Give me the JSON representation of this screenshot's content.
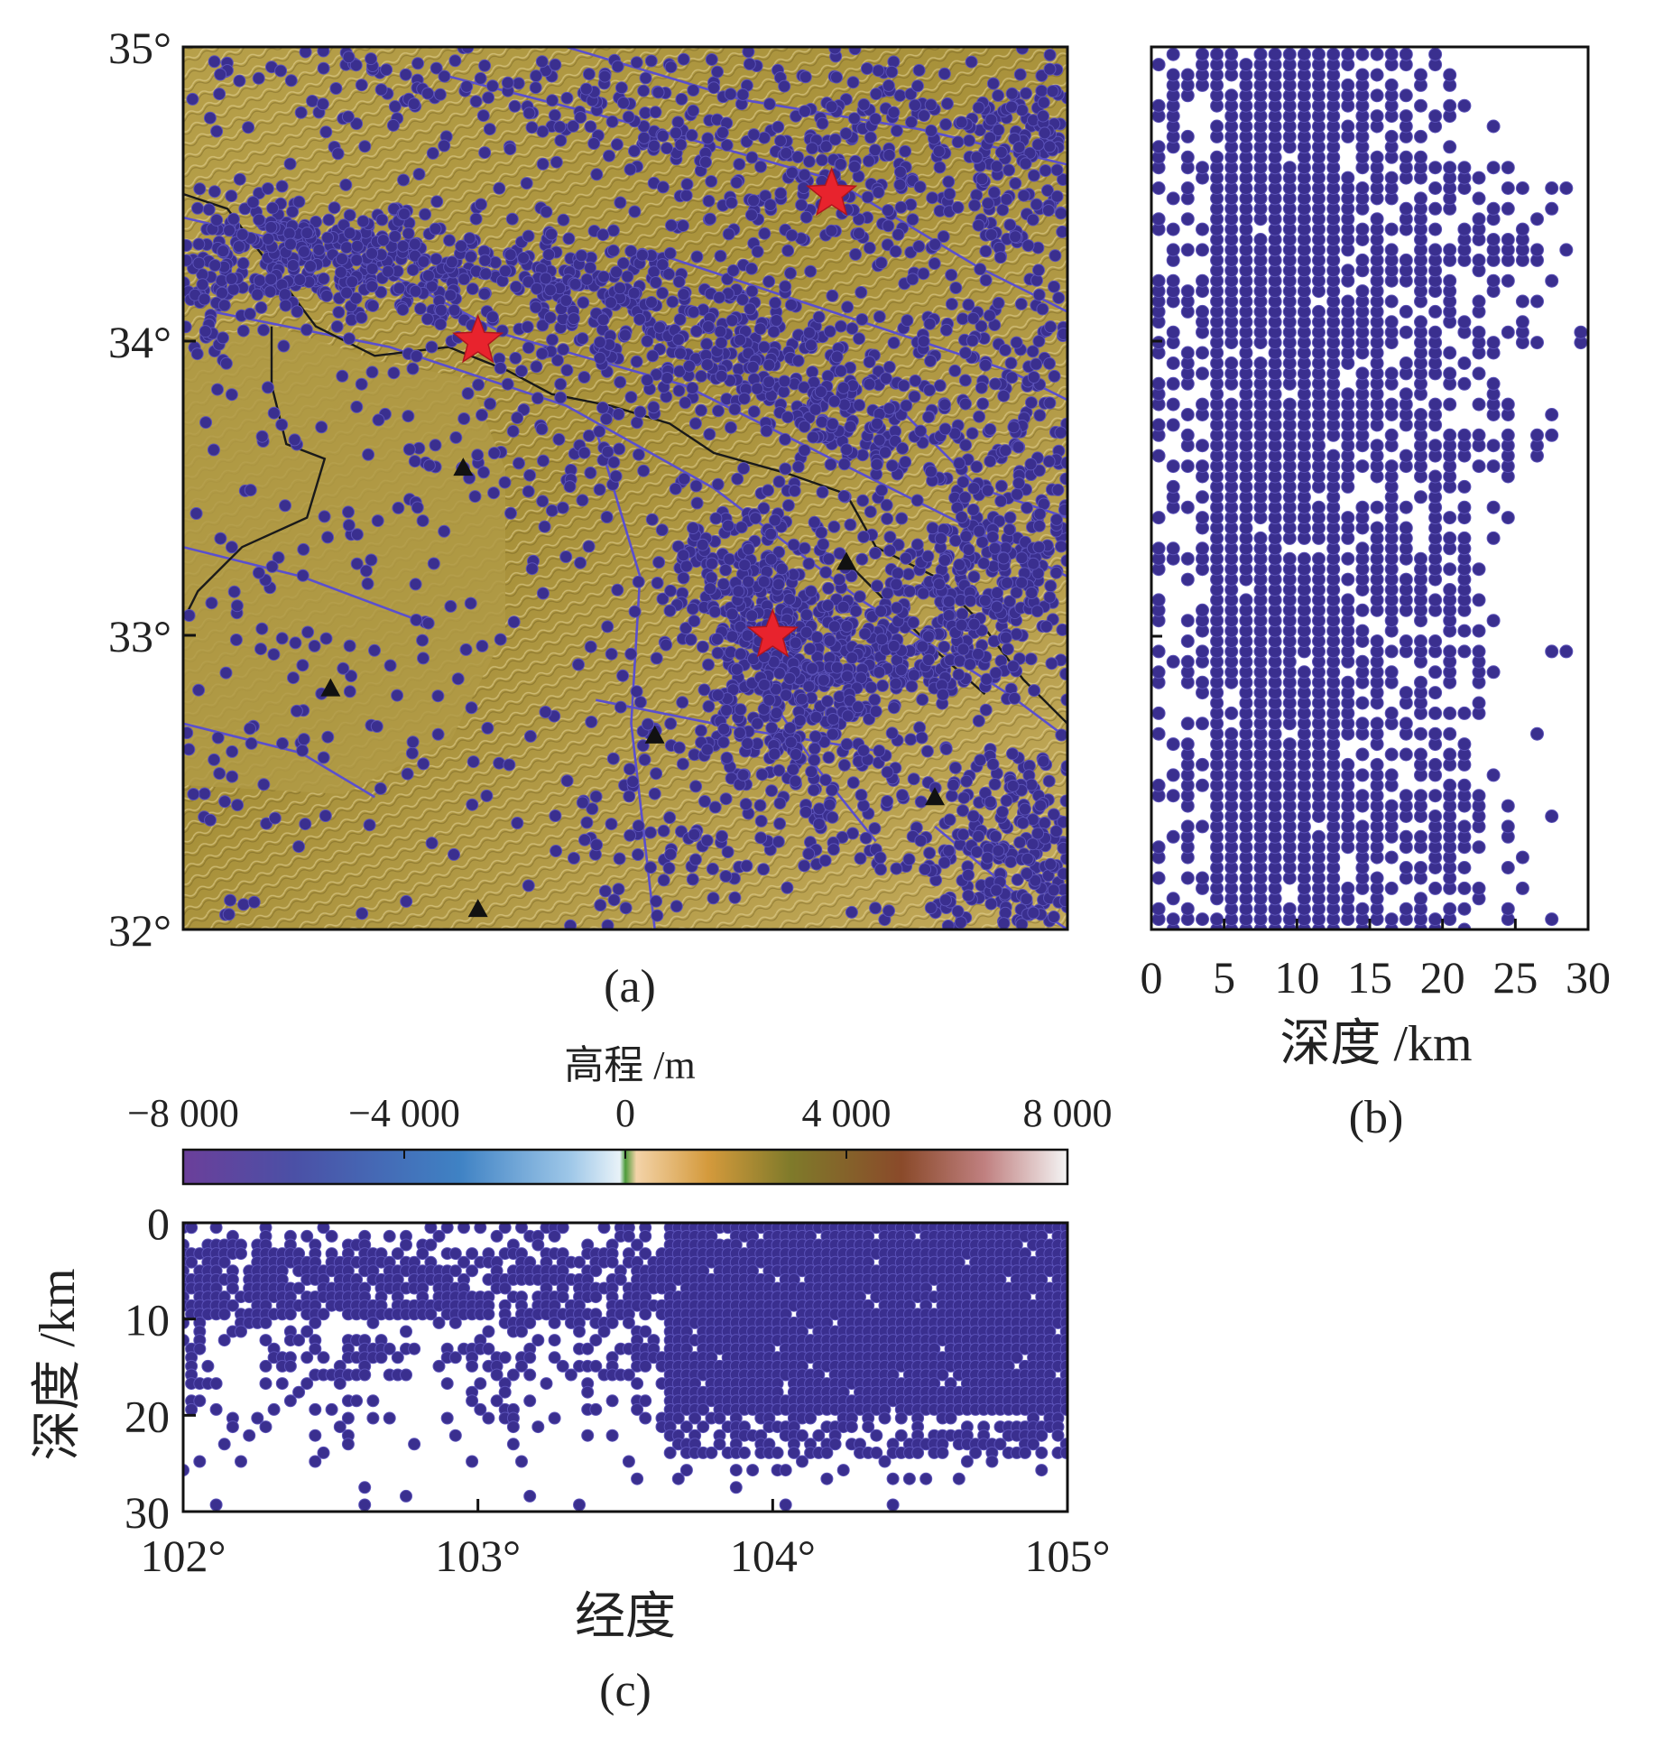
{
  "panel_a": {
    "caption": "(a)",
    "lat_ticks": [
      {
        "value": 35,
        "label": "35°"
      },
      {
        "value": 34,
        "label": "34°"
      },
      {
        "value": 33,
        "label": "33°"
      },
      {
        "value": 32,
        "label": "32°"
      }
    ],
    "lon_range": [
      102,
      105
    ],
    "lat_range": [
      32,
      35
    ],
    "colors": {
      "terrain": "#b59a3a",
      "event": "#3a2f8f",
      "fault": "#5a4fcf",
      "border": "#1a1a1a",
      "star": "#e8232d"
    },
    "stars": [
      {
        "lon": 104.2,
        "lat": 34.5
      },
      {
        "lon": 103.0,
        "lat": 34.0
      },
      {
        "lon": 104.0,
        "lat": 33.0
      }
    ],
    "stations": [
      {
        "lon": 102.95,
        "lat": 33.57
      },
      {
        "lon": 102.5,
        "lat": 32.82
      },
      {
        "lon": 103.6,
        "lat": 32.66
      },
      {
        "lon": 104.25,
        "lat": 33.25
      },
      {
        "lon": 103.0,
        "lat": 32.07
      },
      {
        "lon": 104.55,
        "lat": 32.45
      }
    ]
  },
  "panel_b": {
    "caption": "(b)",
    "x_ticks": [
      "0",
      "5",
      "10",
      "15",
      "20",
      "25",
      "30"
    ],
    "x_title": "深度 /km",
    "x_range": [
      0,
      30
    ]
  },
  "panel_c": {
    "caption": "(c)",
    "x_ticks": [
      "102°",
      "103°",
      "104°",
      "105°"
    ],
    "y_ticks": [
      "0",
      "10",
      "20",
      "30"
    ],
    "x_title": "经度",
    "y_title": "深度 /km",
    "x_range": [
      102,
      105
    ],
    "y_range": [
      0,
      30
    ]
  },
  "colorbar": {
    "title": "高程 /m",
    "tick_labels": [
      "−8 000",
      "−4 000",
      "0",
      "4 000",
      "8 000"
    ],
    "range": [
      -8000,
      8000
    ],
    "stops": [
      {
        "value": -8000,
        "color": "#6b3f9a"
      },
      {
        "value": -6000,
        "color": "#4b50a6"
      },
      {
        "value": -3000,
        "color": "#3f82c4"
      },
      {
        "value": -1000,
        "color": "#9ec7e8"
      },
      {
        "value": -100,
        "color": "#e8f2f8"
      },
      {
        "value": 0,
        "color": "#4c9a3a"
      },
      {
        "value": 200,
        "color": "#f3d3a8"
      },
      {
        "value": 1500,
        "color": "#d49a3c"
      },
      {
        "value": 3000,
        "color": "#7f7a2a"
      },
      {
        "value": 5000,
        "color": "#8a4a2a"
      },
      {
        "value": 6500,
        "color": "#c08080"
      },
      {
        "value": 8000,
        "color": "#f4f4f4"
      }
    ]
  }
}
